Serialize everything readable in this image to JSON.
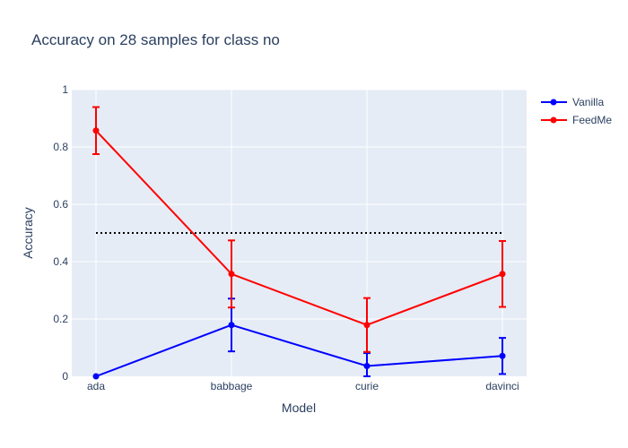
{
  "chart_data": {
    "type": "line",
    "title": "Accuracy on 28 samples for class  no",
    "xlabel": "Model",
    "ylabel": "Accuracy",
    "categories": [
      "ada",
      "babbage",
      "curie",
      "davinci"
    ],
    "ylim": [
      0,
      1
    ],
    "yticks": [
      0,
      0.2,
      0.4,
      0.6,
      0.8,
      1
    ],
    "ytick_labels": [
      "0",
      "0.2",
      "0.4",
      "0.6",
      "0.8",
      "1"
    ],
    "grid": true,
    "legend_position": "top-right",
    "plot_background": "#e5ecf6",
    "series": [
      {
        "name": "Vanilla",
        "color": "#0000ff",
        "values": [
          0.0,
          0.179,
          0.036,
          0.071
        ],
        "error": [
          0.0,
          0.092,
          0.045,
          0.063
        ]
      },
      {
        "name": "FeedMe",
        "color": "#ff0000",
        "values": [
          0.857,
          0.357,
          0.179,
          0.357
        ],
        "error": [
          0.082,
          0.117,
          0.094,
          0.115
        ]
      }
    ],
    "reference_line": {
      "y": 0.5,
      "style": "dotted",
      "color": "#000000",
      "from": "ada",
      "to": "davinci"
    }
  }
}
